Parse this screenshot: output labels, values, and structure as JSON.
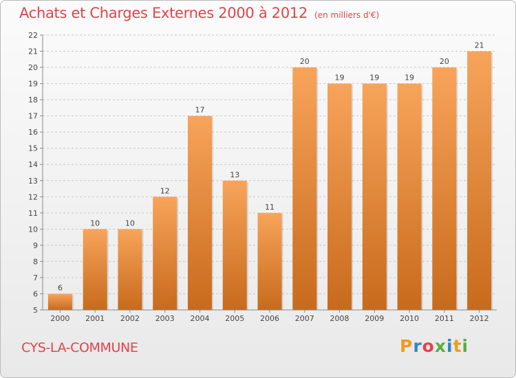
{
  "header": {
    "title": "Achats et Charges Externes 2000 à 2012",
    "unit": "(en milliers d'€)"
  },
  "footer": {
    "commune": "CYS-LA-COMMUNE",
    "logo_text": "Proxiti",
    "logo_colors": [
      "#f39a1e",
      "#2f86c8",
      "#e2434a",
      "#57b041",
      "#2f86c8",
      "#f39a1e",
      "#57b041"
    ]
  },
  "colors": {
    "title": "#e2434a",
    "bar_light": "#f7a45a",
    "bar_dark": "#c86a1c"
  },
  "chart_data": {
    "type": "bar",
    "title": "Achats et Charges Externes 2000 à 2012",
    "subtitle": "(en milliers d'€)",
    "categories": [
      "2000",
      "2001",
      "2002",
      "2003",
      "2004",
      "2005",
      "2006",
      "2007",
      "2008",
      "2009",
      "2010",
      "2011",
      "2012"
    ],
    "values": [
      6,
      10,
      10,
      12,
      17,
      13,
      11,
      20,
      19,
      19,
      19,
      20,
      21
    ],
    "ylim": [
      5,
      22
    ],
    "yticks": [
      5,
      6,
      7,
      8,
      9,
      10,
      11,
      12,
      13,
      14,
      15,
      16,
      17,
      18,
      19,
      20,
      21,
      22
    ],
    "xlabel": "",
    "ylabel": "",
    "grid": "horizontal dashed",
    "data_labels": true
  }
}
